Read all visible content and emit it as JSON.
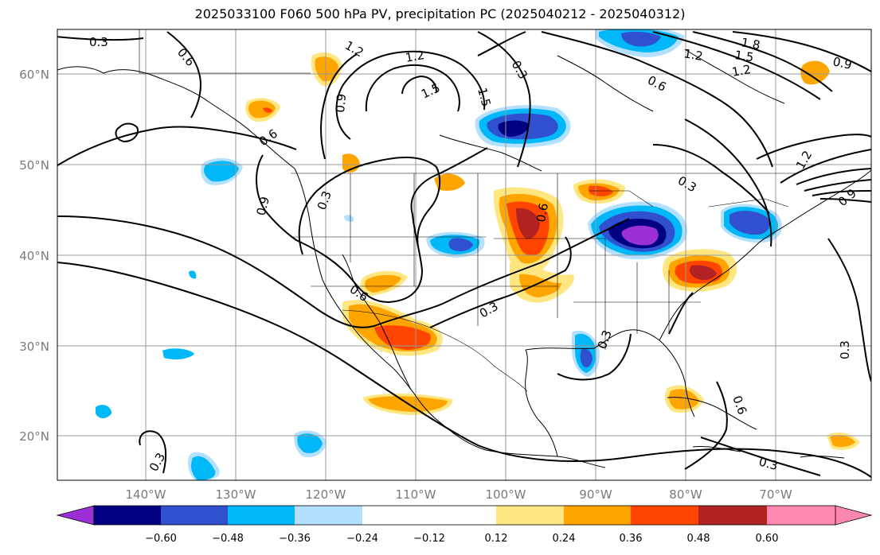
{
  "title": "2025033100 F060 500 hPa PV, precipitation PC (2025040212 - 2025040312)",
  "axes": {
    "lat_labels": [
      "60°N",
      "50°N",
      "40°N",
      "30°N",
      "20°N"
    ],
    "lon_labels": [
      "140°W",
      "130°W",
      "120°W",
      "110°W",
      "100°W",
      "90°W",
      "80°W",
      "70°W"
    ]
  },
  "contour_labels": [
    "0.3",
    "0.6",
    "0.9",
    "1.2",
    "1.5",
    "1.8"
  ],
  "colorbar": {
    "ticks": [
      "−0.60",
      "−0.48",
      "−0.36",
      "−0.24",
      "−0.12",
      "0.12",
      "0.24",
      "0.36",
      "0.48",
      "0.60"
    ],
    "colors": [
      "#9b30d6",
      "#000080",
      "#3050d0",
      "#00b8f8",
      "#b3e0ff",
      "#ffffff",
      "#ffe680",
      "#ffa500",
      "#ff4500",
      "#b22222",
      "#ff88b0"
    ]
  }
}
